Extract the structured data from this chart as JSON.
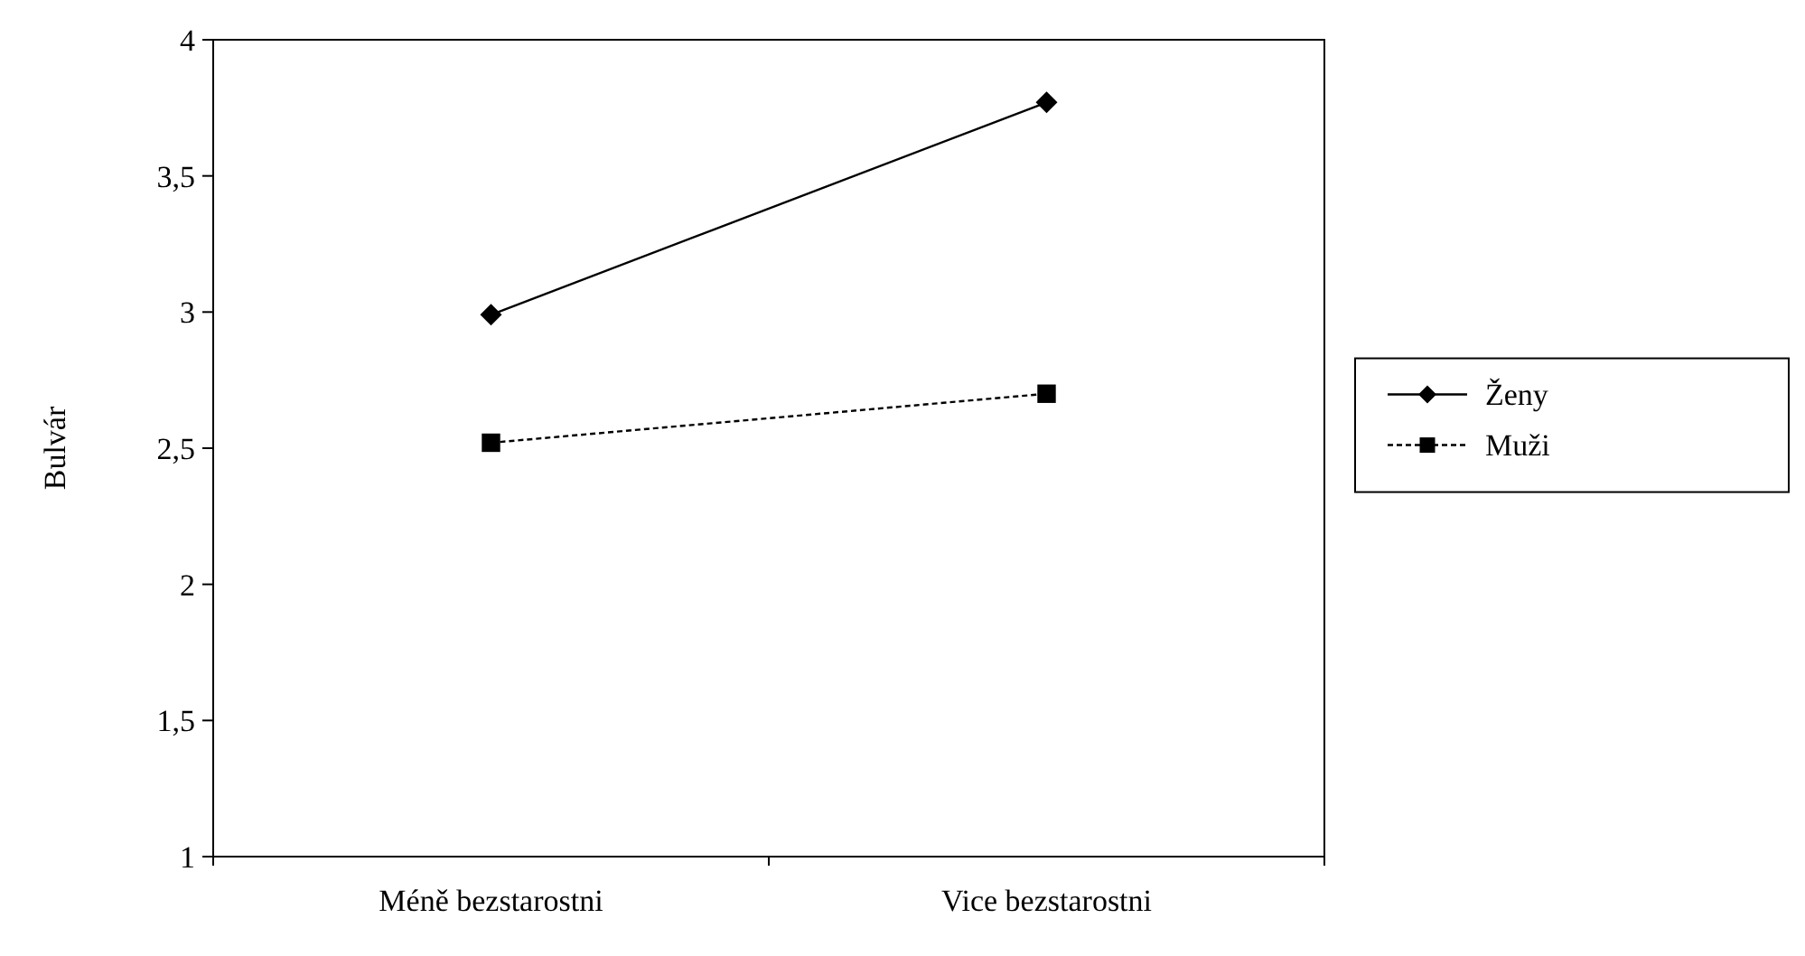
{
  "chart_data": {
    "type": "line",
    "ylabel": "Bulvár",
    "categories": [
      "Méně bezstarostni",
      "Vice bezstarostni"
    ],
    "series": [
      {
        "name": "Ženy",
        "color": "#000000",
        "values": [
          2.99,
          3.77
        ],
        "marker": "diamond",
        "line_style": "solid"
      },
      {
        "name": "Muži",
        "color": "#000000",
        "values": [
          2.52,
          2.7
        ],
        "marker": "square",
        "line_style": "dashed"
      }
    ],
    "ylim": [
      1,
      4
    ],
    "yticks": [
      {
        "value": 1,
        "label": "1"
      },
      {
        "value": 1.5,
        "label": "1,5"
      },
      {
        "value": 2,
        "label": "2"
      },
      {
        "value": 2.5,
        "label": "2,5"
      },
      {
        "value": 3,
        "label": "3"
      },
      {
        "value": 3.5,
        "label": "3,5"
      },
      {
        "value": 4,
        "label": "4"
      }
    ],
    "grid": false,
    "legend": "right"
  }
}
